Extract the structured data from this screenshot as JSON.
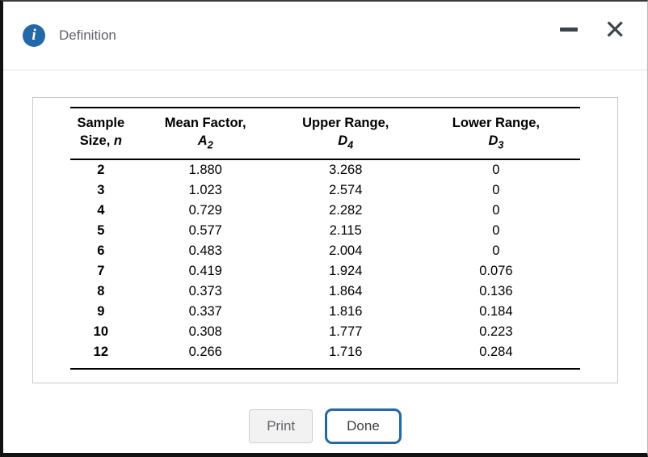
{
  "dialog": {
    "title": "Definition"
  },
  "icons": {
    "info": "i",
    "minimize": "–",
    "close": "✕"
  },
  "table": {
    "headers": {
      "sample": {
        "line1": "Sample",
        "line2_prefix": "Size, ",
        "symbol": "n"
      },
      "mean": {
        "line1": "Mean Factor,",
        "symbol": "A",
        "sub": "2"
      },
      "upper": {
        "line1": "Upper Range,",
        "symbol": "D",
        "sub": "4"
      },
      "lower": {
        "line1": "Lower Range,",
        "symbol": "D",
        "sub": "3"
      }
    },
    "rows": [
      [
        "2",
        "1.880",
        "3.268",
        "0"
      ],
      [
        "3",
        "1.023",
        "2.574",
        "0"
      ],
      [
        "4",
        "0.729",
        "2.282",
        "0"
      ],
      [
        "5",
        "0.577",
        "2.115",
        "0"
      ],
      [
        "6",
        "0.483",
        "2.004",
        "0"
      ],
      [
        "7",
        "0.419",
        "1.924",
        "0.076"
      ],
      [
        "8",
        "0.373",
        "1.864",
        "0.136"
      ],
      [
        "9",
        "0.337",
        "1.816",
        "0.184"
      ],
      [
        "10",
        "0.308",
        "1.777",
        "0.223"
      ],
      [
        "12",
        "0.266",
        "1.716",
        "0.284"
      ]
    ]
  },
  "buttons": {
    "print": "Print",
    "done": "Done"
  },
  "colors": {
    "accent_blue": "#2368a8",
    "title_gray": "#5f6368",
    "control_gray": "#3d454c"
  }
}
